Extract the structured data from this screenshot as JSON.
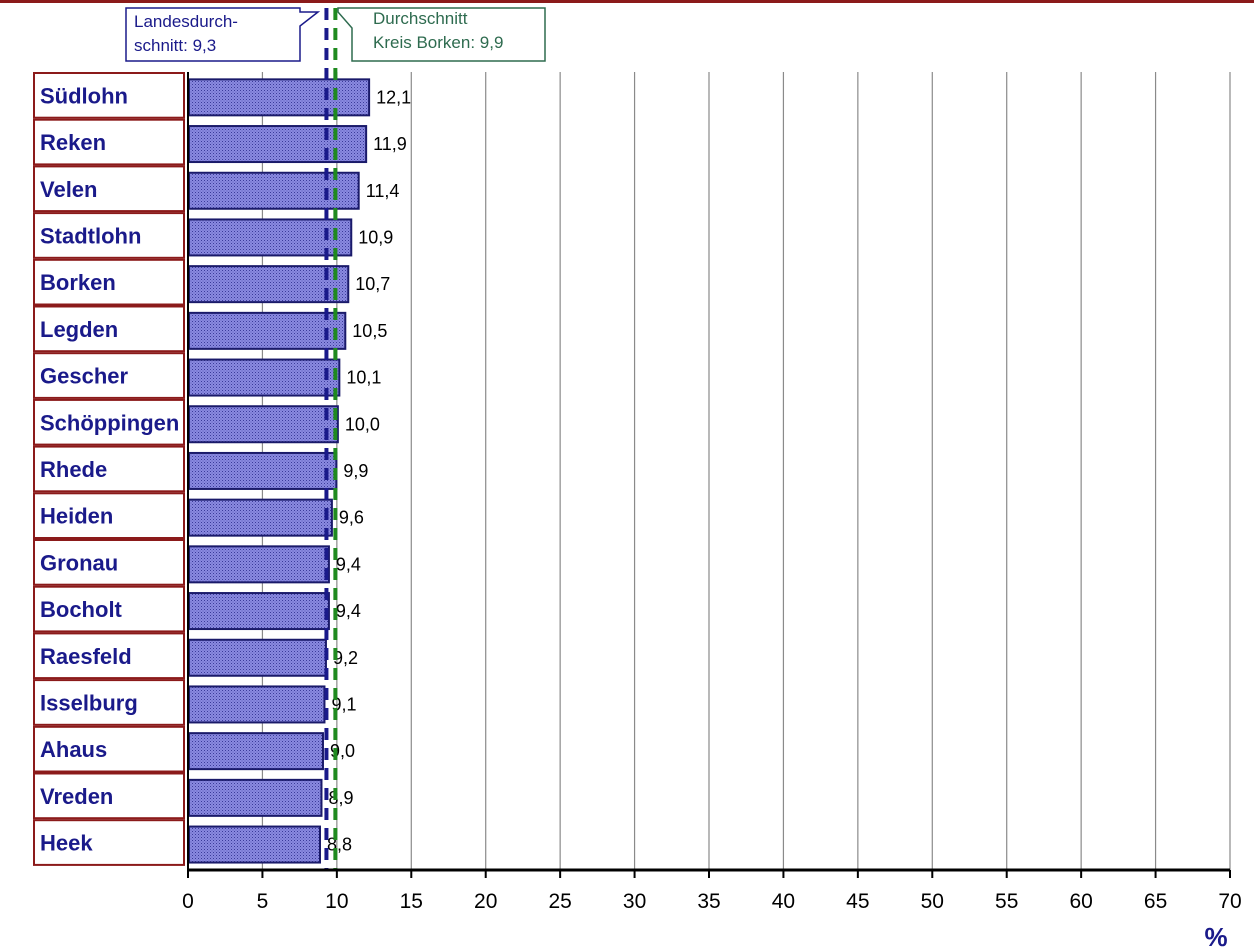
{
  "chart_data": {
    "type": "bar",
    "orientation": "horizontal",
    "categories": [
      "Südlohn",
      "Reken",
      "Velen",
      "Stadtlohn",
      "Borken",
      "Legden",
      "Gescher",
      "Schöppingen",
      "Rhede",
      "Heiden",
      "Gronau",
      "Bocholt",
      "Raesfeld",
      "Isselburg",
      "Ahaus",
      "Vreden",
      "Heek"
    ],
    "values": [
      12.1,
      11.9,
      11.4,
      10.9,
      10.7,
      10.5,
      10.1,
      10.0,
      9.9,
      9.6,
      9.4,
      9.4,
      9.2,
      9.1,
      9.0,
      8.9,
      8.8
    ],
    "value_labels": [
      "12,1",
      "11,9",
      "11,4",
      "10,9",
      "10,7",
      "10,5",
      "10,1",
      "10,0",
      "9,9",
      "9,6",
      "9,4",
      "9,4",
      "9,2",
      "9,1",
      "9,0",
      "8,9",
      "8,8"
    ],
    "x_ticks": [
      0,
      5,
      10,
      15,
      20,
      25,
      30,
      35,
      40,
      45,
      50,
      55,
      60,
      65,
      70
    ],
    "xlim": [
      0,
      70
    ],
    "xunit": "%",
    "grid": "vertical",
    "reference_lines": [
      {
        "value": 9.3,
        "label_lines": [
          "Landesdurch-",
          "schnitt: 9,3"
        ],
        "color": "#1a1a8a",
        "style": "dashed"
      },
      {
        "value": 9.9,
        "label_lines": [
          "Durchschnitt",
          "Kreis Borken: 9,9"
        ],
        "color": "#1f8a1f",
        "style": "dashed"
      }
    ],
    "colors": {
      "bar_fill": "#7a7ad0",
      "bar_border": "#1a1a6a",
      "category_border": "#8b1a1a",
      "category_text": "#1a1a8a",
      "top_rule": "#8b1a1a",
      "grid": "#8a8a8a",
      "landes_label_text": "#1a1a8a",
      "kreis_label_text": "#2e6b4f"
    }
  }
}
